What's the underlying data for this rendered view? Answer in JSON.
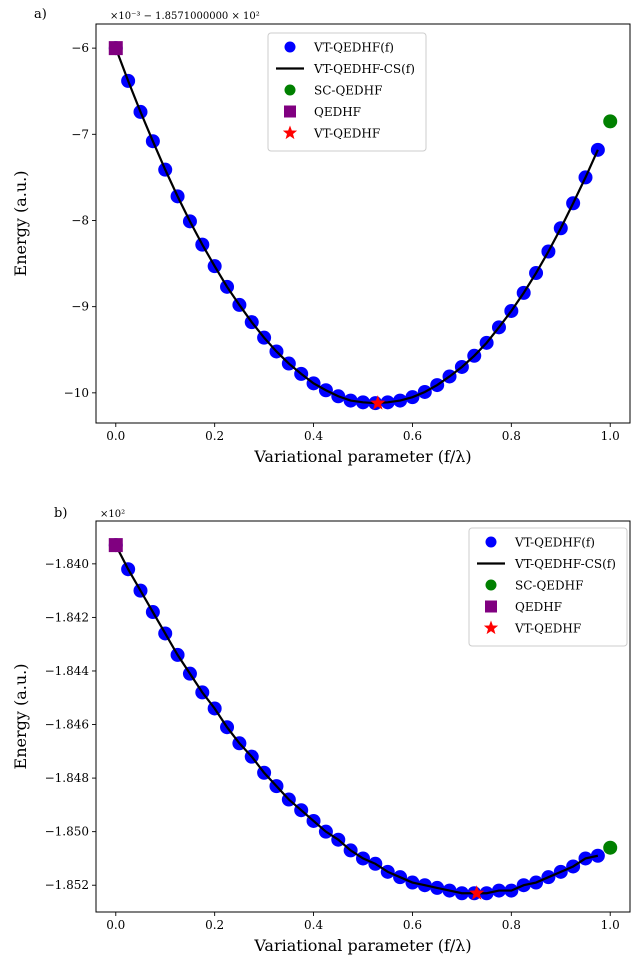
{
  "chart_data": [
    {
      "type": "scatter",
      "panel_label": "a)",
      "offset_text": "×10⁻³ − 1.8571000000 × 10²",
      "xlabel": "Variational parameter (f/λ)",
      "ylabel": "Energy (a.u.)",
      "xlim": [
        -0.04,
        1.04
      ],
      "ylim": [
        -10.35,
        -5.72
      ],
      "xticks": [
        0.0,
        0.2,
        0.4,
        0.6,
        0.8,
        1.0
      ],
      "xtick_labels": [
        "0.0",
        "0.2",
        "0.4",
        "0.6",
        "0.8",
        "1.0"
      ],
      "yticks": [
        -6,
        -7,
        -8,
        -9,
        -10
      ],
      "ytick_labels": [
        "−6",
        "−7",
        "−8",
        "−9",
        "−10"
      ],
      "grid": false,
      "legend_position": "top-center",
      "legend": [
        "VT-QEDHF(f)",
        "VT-QEDHF-CS(f)",
        "SC-QEDHF",
        "QEDHF",
        "VT-QEDHF"
      ],
      "series": [
        {
          "name": "VT-QEDHF(f)",
          "marker": "circle",
          "color": "#0000ff",
          "x": [
            0.0,
            0.025,
            0.05,
            0.075,
            0.1,
            0.125,
            0.15,
            0.175,
            0.2,
            0.225,
            0.25,
            0.275,
            0.3,
            0.325,
            0.35,
            0.375,
            0.4,
            0.425,
            0.45,
            0.475,
            0.5,
            0.525,
            0.55,
            0.575,
            0.6,
            0.625,
            0.65,
            0.675,
            0.7,
            0.725,
            0.75,
            0.775,
            0.8,
            0.825,
            0.85,
            0.875,
            0.9,
            0.925,
            0.95,
            0.975
          ],
          "y": [
            -6.0,
            -6.38,
            -6.74,
            -7.08,
            -7.41,
            -7.72,
            -8.01,
            -8.28,
            -8.53,
            -8.77,
            -8.98,
            -9.18,
            -9.36,
            -9.52,
            -9.66,
            -9.78,
            -9.89,
            -9.97,
            -10.04,
            -10.09,
            -10.11,
            -10.12,
            -10.11,
            -10.09,
            -10.05,
            -9.99,
            -9.91,
            -9.81,
            -9.7,
            -9.57,
            -9.42,
            -9.24,
            -9.05,
            -8.84,
            -8.61,
            -8.36,
            -8.09,
            -7.8,
            -7.5,
            -7.18
          ]
        },
        {
          "name": "VT-QEDHF-CS(f)",
          "marker": "line",
          "color": "#000000",
          "x": [
            0.0,
            0.025,
            0.05,
            0.075,
            0.1,
            0.125,
            0.15,
            0.175,
            0.2,
            0.225,
            0.25,
            0.275,
            0.3,
            0.325,
            0.35,
            0.375,
            0.4,
            0.425,
            0.45,
            0.475,
            0.5,
            0.525,
            0.55,
            0.575,
            0.6,
            0.625,
            0.65,
            0.675,
            0.7,
            0.725,
            0.75,
            0.775,
            0.8,
            0.825,
            0.85,
            0.875,
            0.9,
            0.925,
            0.95,
            0.975
          ],
          "y": [
            -6.0,
            -6.38,
            -6.74,
            -7.08,
            -7.41,
            -7.72,
            -8.01,
            -8.28,
            -8.53,
            -8.77,
            -8.98,
            -9.18,
            -9.36,
            -9.52,
            -9.66,
            -9.78,
            -9.89,
            -9.97,
            -10.04,
            -10.09,
            -10.11,
            -10.12,
            -10.11,
            -10.09,
            -10.05,
            -9.99,
            -9.91,
            -9.81,
            -9.7,
            -9.57,
            -9.42,
            -9.24,
            -9.05,
            -8.84,
            -8.61,
            -8.36,
            -8.09,
            -7.8,
            -7.5,
            -7.18
          ]
        },
        {
          "name": "SC-QEDHF",
          "marker": "circle",
          "color": "#008000",
          "x": [
            1.0
          ],
          "y": [
            -6.85
          ]
        },
        {
          "name": "QEDHF",
          "marker": "square",
          "color": "#800080",
          "x": [
            0.0
          ],
          "y": [
            -6.0
          ]
        },
        {
          "name": "VT-QEDHF",
          "marker": "star",
          "color": "#ff0000",
          "x": [
            0.53
          ],
          "y": [
            -10.12
          ]
        }
      ]
    },
    {
      "type": "scatter",
      "panel_label": "b)",
      "offset_text": "×10²",
      "xlabel": "Variational parameter (f/λ)",
      "ylabel": "Energy (a.u.)",
      "xlim": [
        -0.04,
        1.04
      ],
      "ylim": [
        -1.853,
        -1.8384
      ],
      "xticks": [
        0.0,
        0.2,
        0.4,
        0.6,
        0.8,
        1.0
      ],
      "xtick_labels": [
        "0.0",
        "0.2",
        "0.4",
        "0.6",
        "0.8",
        "1.0"
      ],
      "yticks": [
        -1.84,
        -1.842,
        -1.844,
        -1.846,
        -1.848,
        -1.85,
        -1.852
      ],
      "ytick_labels": [
        "−1.840",
        "−1.842",
        "−1.844",
        "−1.846",
        "−1.848",
        "−1.850",
        "−1.852"
      ],
      "grid": false,
      "legend_position": "top-right",
      "legend": [
        "VT-QEDHF(f)",
        "VT-QEDHF-CS(f)",
        "SC-QEDHF",
        "QEDHF",
        "VT-QEDHF"
      ],
      "series": [
        {
          "name": "VT-QEDHF(f)",
          "marker": "circle",
          "color": "#0000ff",
          "x": [
            0.0,
            0.025,
            0.05,
            0.075,
            0.1,
            0.125,
            0.15,
            0.175,
            0.2,
            0.225,
            0.25,
            0.275,
            0.3,
            0.325,
            0.35,
            0.375,
            0.4,
            0.425,
            0.45,
            0.475,
            0.5,
            0.525,
            0.55,
            0.575,
            0.6,
            0.625,
            0.65,
            0.675,
            0.7,
            0.725,
            0.75,
            0.775,
            0.8,
            0.825,
            0.85,
            0.875,
            0.9,
            0.925,
            0.95,
            0.975
          ],
          "y": [
            -1.8393,
            -1.8402,
            -1.841,
            -1.8418,
            -1.8426,
            -1.8434,
            -1.8441,
            -1.8448,
            -1.8454,
            -1.8461,
            -1.8467,
            -1.8472,
            -1.8478,
            -1.8483,
            -1.8488,
            -1.8492,
            -1.8496,
            -1.85,
            -1.8503,
            -1.8507,
            -1.851,
            -1.8512,
            -1.8515,
            -1.8517,
            -1.8519,
            -1.852,
            -1.8521,
            -1.8522,
            -1.8523,
            -1.8523,
            -1.8523,
            -1.8522,
            -1.8522,
            -1.852,
            -1.8519,
            -1.8517,
            -1.8515,
            -1.8513,
            -1.851,
            -1.8509
          ]
        },
        {
          "name": "VT-QEDHF-CS(f)",
          "marker": "line",
          "color": "#000000",
          "x": [
            0.0,
            0.025,
            0.05,
            0.075,
            0.1,
            0.125,
            0.15,
            0.175,
            0.2,
            0.225,
            0.25,
            0.275,
            0.3,
            0.325,
            0.35,
            0.375,
            0.4,
            0.425,
            0.45,
            0.475,
            0.5,
            0.525,
            0.55,
            0.575,
            0.6,
            0.625,
            0.65,
            0.675,
            0.7,
            0.725,
            0.75,
            0.775,
            0.8,
            0.825,
            0.85,
            0.875,
            0.9,
            0.925,
            0.95,
            0.975
          ],
          "y": [
            -1.8393,
            -1.8402,
            -1.841,
            -1.8418,
            -1.8426,
            -1.8434,
            -1.8441,
            -1.8448,
            -1.8454,
            -1.8461,
            -1.8467,
            -1.8472,
            -1.8478,
            -1.8483,
            -1.8488,
            -1.8492,
            -1.8496,
            -1.85,
            -1.8503,
            -1.8507,
            -1.851,
            -1.8512,
            -1.8515,
            -1.8517,
            -1.8519,
            -1.852,
            -1.8521,
            -1.8522,
            -1.8523,
            -1.8523,
            -1.8523,
            -1.8522,
            -1.8522,
            -1.852,
            -1.8519,
            -1.8517,
            -1.8515,
            -1.8513,
            -1.851,
            -1.8509
          ]
        },
        {
          "name": "SC-QEDHF",
          "marker": "circle",
          "color": "#008000",
          "x": [
            1.0
          ],
          "y": [
            -1.8506
          ]
        },
        {
          "name": "QEDHF",
          "marker": "square",
          "color": "#800080",
          "x": [
            0.0
          ],
          "y": [
            -1.8393
          ]
        },
        {
          "name": "VT-QEDHF",
          "marker": "star",
          "color": "#ff0000",
          "x": [
            0.73
          ],
          "y": [
            -1.8523
          ]
        }
      ]
    }
  ]
}
